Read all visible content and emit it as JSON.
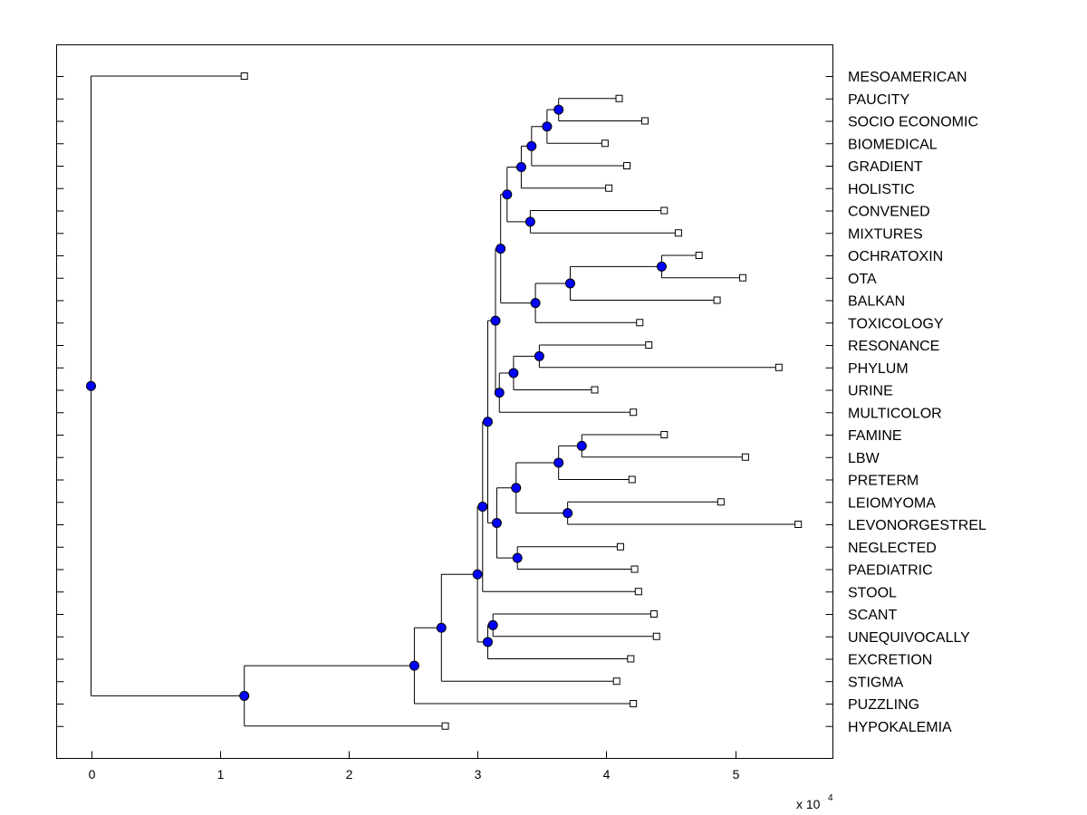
{
  "chart_data": {
    "type": "dendrogram",
    "title": "",
    "xlabel": "",
    "ylabel": "",
    "x_scale": {
      "base": "x 10",
      "exponent": "4"
    },
    "xlim": [
      -0.27,
      5.75
    ],
    "xticks": [
      0,
      1,
      2,
      3,
      4,
      5
    ],
    "xtick_labels": [
      "0",
      "1",
      "2",
      "3",
      "4",
      "5"
    ],
    "colors": {
      "internal_node": "#0000ff",
      "leaf_fill": "#ffffff",
      "line": "#000000"
    },
    "leaves": [
      {
        "id": 0,
        "label": "MESOAMERICAN",
        "x": 1.19
      },
      {
        "id": 1,
        "label": "PAUCITY",
        "x": 4.1
      },
      {
        "id": 2,
        "label": "SOCIO ECONOMIC",
        "x": 4.3
      },
      {
        "id": 3,
        "label": "BIOMEDICAL",
        "x": 3.99
      },
      {
        "id": 4,
        "label": "GRADIENT",
        "x": 4.16
      },
      {
        "id": 5,
        "label": "HOLISTIC",
        "x": 4.02
      },
      {
        "id": 6,
        "label": "CONVENED",
        "x": 4.45
      },
      {
        "id": 7,
        "label": "MIXTURES",
        "x": 4.56
      },
      {
        "id": 8,
        "label": "OCHRATOXIN",
        "x": 4.72
      },
      {
        "id": 9,
        "label": "OTA",
        "x": 5.06
      },
      {
        "id": 10,
        "label": "BALKAN",
        "x": 4.86
      },
      {
        "id": 11,
        "label": "TOXICOLOGY",
        "x": 4.26
      },
      {
        "id": 12,
        "label": "RESONANCE",
        "x": 4.33
      },
      {
        "id": 13,
        "label": "PHYLUM",
        "x": 5.34
      },
      {
        "id": 14,
        "label": "URINE",
        "x": 3.91
      },
      {
        "id": 15,
        "label": "MULTICOLOR",
        "x": 4.21
      },
      {
        "id": 16,
        "label": "FAMINE",
        "x": 4.45
      },
      {
        "id": 17,
        "label": "LBW",
        "x": 5.08
      },
      {
        "id": 18,
        "label": "PRETERM",
        "x": 4.2
      },
      {
        "id": 19,
        "label": "LEIOMYOMA",
        "x": 4.89
      },
      {
        "id": 20,
        "label": "LEVONORGESTREL",
        "x": 5.49
      },
      {
        "id": 21,
        "label": "NEGLECTED",
        "x": 4.11
      },
      {
        "id": 22,
        "label": "PAEDIATRIC",
        "x": 4.22
      },
      {
        "id": 23,
        "label": "STOOL",
        "x": 4.25
      },
      {
        "id": 24,
        "label": "SCANT",
        "x": 4.37
      },
      {
        "id": 25,
        "label": "UNEQUIVOCALLY",
        "x": 4.39
      },
      {
        "id": 26,
        "label": "EXCRETION",
        "x": 4.19
      },
      {
        "id": 27,
        "label": "STIGMA",
        "x": 4.08
      },
      {
        "id": 28,
        "label": "PUZZLING",
        "x": 4.21
      },
      {
        "id": 29,
        "label": "HYPOKALEMIA",
        "x": 2.75
      }
    ],
    "merges": [
      {
        "id": "n1",
        "x": 3.63,
        "children": [
          1,
          2
        ]
      },
      {
        "id": "n2",
        "x": 3.54,
        "children": [
          "n1",
          3
        ]
      },
      {
        "id": "n3",
        "x": 3.42,
        "children": [
          "n2",
          4
        ]
      },
      {
        "id": "n4",
        "x": 3.34,
        "children": [
          "n3",
          5
        ]
      },
      {
        "id": "n5",
        "x": 3.41,
        "children": [
          6,
          7
        ]
      },
      {
        "id": "n6",
        "x": 3.23,
        "children": [
          "n4",
          "n5"
        ]
      },
      {
        "id": "n7",
        "x": 4.43,
        "children": [
          8,
          9
        ]
      },
      {
        "id": "n8",
        "x": 3.72,
        "children": [
          "n7",
          10
        ]
      },
      {
        "id": "n9",
        "x": 3.45,
        "children": [
          "n8",
          11
        ]
      },
      {
        "id": "n10",
        "x": 3.18,
        "children": [
          "n6",
          "n9"
        ]
      },
      {
        "id": "n11",
        "x": 3.48,
        "children": [
          12,
          13
        ]
      },
      {
        "id": "n12",
        "x": 3.28,
        "children": [
          "n11",
          14
        ]
      },
      {
        "id": "n13",
        "x": 3.17,
        "children": [
          "n12",
          15
        ]
      },
      {
        "id": "n14",
        "x": 3.14,
        "children": [
          "n10",
          "n13"
        ]
      },
      {
        "id": "n15",
        "x": 3.81,
        "children": [
          16,
          17
        ]
      },
      {
        "id": "n16",
        "x": 3.63,
        "children": [
          "n15",
          18
        ]
      },
      {
        "id": "n17",
        "x": 3.7,
        "children": [
          19,
          20
        ]
      },
      {
        "id": "n18",
        "x": 3.3,
        "children": [
          "n16",
          "n17"
        ]
      },
      {
        "id": "n19",
        "x": 3.31,
        "children": [
          21,
          22
        ]
      },
      {
        "id": "n20",
        "x": 3.15,
        "children": [
          "n18",
          "n19"
        ]
      },
      {
        "id": "n21",
        "x": 3.08,
        "children": [
          "n14",
          "n20"
        ]
      },
      {
        "id": "n22",
        "x": 3.04,
        "children": [
          "n21",
          23
        ]
      },
      {
        "id": "n23",
        "x": 3.12,
        "children": [
          24,
          25
        ]
      },
      {
        "id": "n24",
        "x": 3.08,
        "children": [
          "n23",
          26
        ]
      },
      {
        "id": "n25",
        "x": 3.0,
        "children": [
          "n22",
          "n24"
        ]
      },
      {
        "id": "n26",
        "x": 2.72,
        "children": [
          "n25",
          27
        ]
      },
      {
        "id": "n27",
        "x": 2.51,
        "children": [
          "n26",
          28
        ]
      },
      {
        "id": "n28",
        "x": 1.19,
        "children": [
          "n27",
          29
        ]
      },
      {
        "id": "root",
        "x": 0.0,
        "children": [
          0,
          "n28"
        ]
      }
    ]
  }
}
